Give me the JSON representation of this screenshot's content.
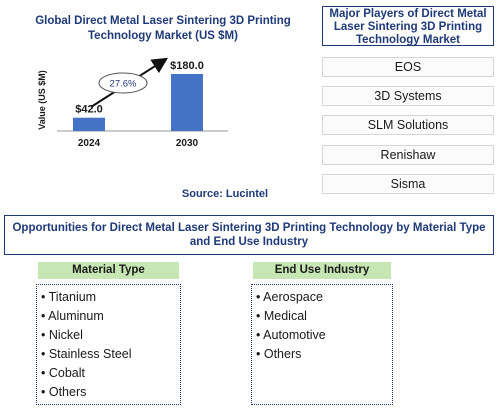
{
  "chart_data": {
    "type": "bar",
    "title": "Global Direct Metal Laser Sintering 3D Printing Technology Market (US $M)",
    "ylabel": "Value (US $M)",
    "categories": [
      "2024",
      "2030"
    ],
    "values": [
      42.0,
      180.0
    ],
    "value_labels": [
      "$42.0",
      "$180.0"
    ],
    "cagr_label": "27.6%",
    "source": "Source: Lucintel",
    "bar_color": "#4472c4"
  },
  "players": {
    "title": "Major Players of Direct Metal Laser Sintering 3D Printing Technology Market",
    "items": [
      "EOS",
      "3D Systems",
      "SLM Solutions",
      "Renishaw",
      "Sisma"
    ]
  },
  "opportunities": {
    "title": "Opportunities for Direct Metal Laser Sintering 3D Printing Technology by Material Type and End Use Industry",
    "material": {
      "header": "Material Type",
      "items": [
        "• Titanium",
        "• Aluminum",
        "• Nickel",
        "• Stainless Steel",
        "• Cobalt",
        "• Others"
      ]
    },
    "end_use": {
      "header": "End Use Industry",
      "items": [
        "• Aerospace",
        "• Medical",
        "• Automotive",
        "• Others"
      ]
    }
  }
}
